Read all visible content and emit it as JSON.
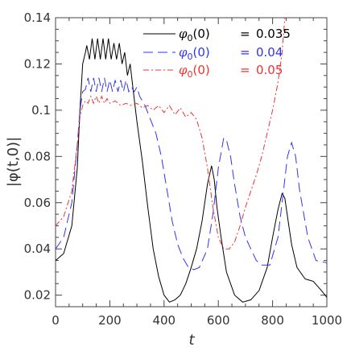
{
  "chart_data": {
    "type": "line",
    "title": "",
    "xlabel": "t",
    "ylabel": "|φ(t,0)|",
    "xlim": [
      0,
      1000
    ],
    "ylim": [
      0.015,
      0.14
    ],
    "xticks": [
      0,
      200,
      400,
      600,
      800,
      1000
    ],
    "xtick_labels": [
      "0",
      "200",
      "400",
      "600",
      "800",
      "1000"
    ],
    "yticks": [
      0.02,
      0.04,
      0.06,
      0.08,
      0.1,
      0.12,
      0.14
    ],
    "ytick_labels": [
      "0.02",
      "0.04",
      "0.06",
      "0.08",
      "0.1",
      "0.12",
      "0.14"
    ],
    "grid": false,
    "legend_position": "top-right",
    "series": [
      {
        "symbol": "φ",
        "sub": "0",
        "arg": "(0)",
        "eq": "=",
        "value": "0.035",
        "color": "#000000",
        "dash": "solid",
        "x": [
          0,
          30,
          60,
          80,
          90,
          100,
          110,
          115,
          125,
          135,
          145,
          155,
          165,
          175,
          185,
          195,
          205,
          215,
          225,
          235,
          245,
          255,
          265,
          275,
          285,
          300,
          320,
          340,
          360,
          380,
          400,
          420,
          440,
          460,
          480,
          500,
          520,
          540,
          560,
          575,
          585,
          595,
          610,
          630,
          660,
          690,
          720,
          750,
          780,
          800,
          820,
          835,
          845,
          855,
          870,
          890,
          920,
          950,
          980,
          1000
        ],
        "y": [
          0.035,
          0.038,
          0.05,
          0.075,
          0.1,
          0.12,
          0.125,
          0.128,
          0.122,
          0.131,
          0.122,
          0.131,
          0.122,
          0.131,
          0.122,
          0.131,
          0.122,
          0.129,
          0.122,
          0.129,
          0.12,
          0.125,
          0.115,
          0.12,
          0.11,
          0.095,
          0.078,
          0.058,
          0.04,
          0.028,
          0.02,
          0.017,
          0.018,
          0.02,
          0.025,
          0.032,
          0.04,
          0.052,
          0.068,
          0.076,
          0.07,
          0.058,
          0.045,
          0.03,
          0.02,
          0.017,
          0.018,
          0.022,
          0.032,
          0.045,
          0.057,
          0.064,
          0.062,
          0.054,
          0.042,
          0.032,
          0.027,
          0.026,
          0.022,
          0.019
        ]
      },
      {
        "symbol": "φ",
        "sub": "0",
        "arg": "(0)",
        "eq": "=",
        "value": "0.04",
        "color": "#3333ee",
        "dash": "long-dash",
        "x": [
          0,
          30,
          60,
          80,
          90,
          100,
          110,
          120,
          130,
          140,
          150,
          160,
          170,
          180,
          190,
          200,
          210,
          220,
          230,
          240,
          250,
          260,
          270,
          280,
          290,
          300,
          310,
          330,
          350,
          370,
          390,
          410,
          430,
          450,
          470,
          490,
          510,
          530,
          560,
          580,
          600,
          620,
          630,
          645,
          660,
          680,
          700,
          720,
          740,
          760,
          790,
          820,
          840,
          855,
          870,
          885,
          900,
          930,
          960,
          1000
        ],
        "y": [
          0.04,
          0.045,
          0.06,
          0.085,
          0.1,
          0.108,
          0.109,
          0.114,
          0.108,
          0.114,
          0.108,
          0.114,
          0.108,
          0.114,
          0.108,
          0.113,
          0.108,
          0.113,
          0.108,
          0.113,
          0.108,
          0.113,
          0.108,
          0.11,
          0.108,
          0.11,
          0.106,
          0.102,
          0.096,
          0.09,
          0.08,
          0.066,
          0.052,
          0.042,
          0.036,
          0.032,
          0.031,
          0.032,
          0.04,
          0.055,
          0.075,
          0.088,
          0.087,
          0.08,
          0.068,
          0.054,
          0.045,
          0.04,
          0.035,
          0.033,
          0.033,
          0.045,
          0.065,
          0.08,
          0.086,
          0.08,
          0.065,
          0.045,
          0.035,
          0.034
        ]
      },
      {
        "symbol": "φ",
        "sub": "0",
        "arg": "(0)",
        "eq": "=",
        "value": "0.05",
        "color": "#ee3333",
        "dash": "dash-dot",
        "x": [
          0,
          30,
          60,
          80,
          90,
          100,
          110,
          120,
          130,
          140,
          150,
          160,
          170,
          180,
          190,
          200,
          220,
          240,
          260,
          280,
          300,
          320,
          340,
          360,
          380,
          400,
          420,
          440,
          460,
          480,
          500,
          520,
          540,
          560,
          580,
          600,
          620,
          640,
          660,
          680,
          700,
          720,
          740,
          760,
          780,
          800,
          820,
          835,
          845
        ],
        "y": [
          0.05,
          0.054,
          0.065,
          0.085,
          0.097,
          0.102,
          0.104,
          0.103,
          0.106,
          0.103,
          0.106,
          0.103,
          0.106,
          0.103,
          0.105,
          0.103,
          0.104,
          0.102,
          0.103,
          0.102,
          0.103,
          0.101,
          0.102,
          0.1,
          0.102,
          0.099,
          0.102,
          0.098,
          0.101,
          0.097,
          0.099,
          0.096,
          0.088,
          0.075,
          0.058,
          0.045,
          0.04,
          0.04,
          0.043,
          0.05,
          0.058,
          0.065,
          0.072,
          0.08,
          0.09,
          0.1,
          0.112,
          0.125,
          0.14
        ]
      }
    ]
  }
}
